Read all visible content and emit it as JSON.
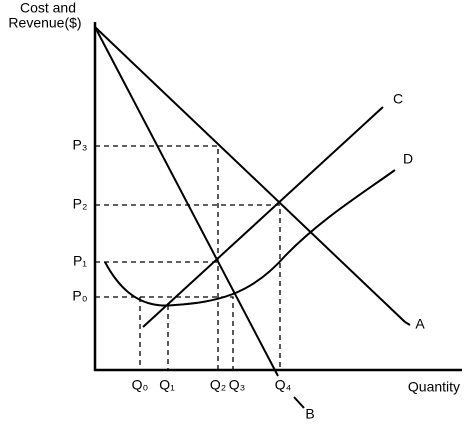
{
  "axes": {
    "y_label_line1": "Cost and",
    "y_label_line2": "Revenue($)",
    "x_label": "Quantity"
  },
  "price_labels": [
    "P₀",
    "P₁",
    "P₂",
    "P₃"
  ],
  "quantity_labels": [
    "Q₀",
    "Q₁",
    "Q₂",
    "Q₃",
    "Q₄"
  ],
  "curve_labels": [
    "A",
    "B",
    "C",
    "D"
  ]
}
